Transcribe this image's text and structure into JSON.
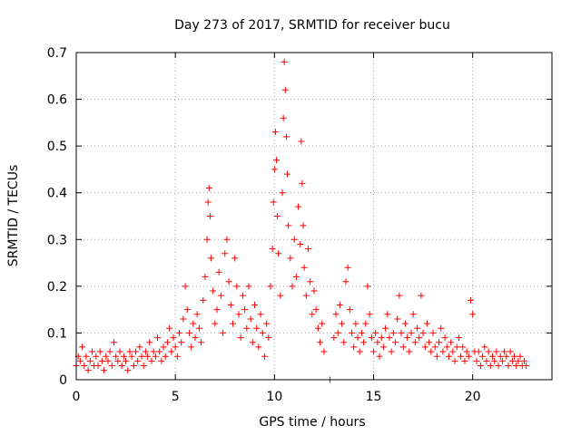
{
  "chart_data": {
    "type": "scatter",
    "title": "Day 273 of 2017, SRMTID for receiver bucu",
    "xlabel": "GPS time / hours",
    "ylabel": "SRMTID / TECUs",
    "xlim": [
      0,
      24
    ],
    "ylim": [
      0,
      0.7
    ],
    "xticks": [
      0,
      5,
      10,
      15,
      20
    ],
    "xtick_labels": [
      "0",
      "5",
      "10",
      "15",
      "20"
    ],
    "yticks": [
      0,
      0.1,
      0.2,
      0.3,
      0.4,
      0.5,
      0.6,
      0.7
    ],
    "ytick_labels": [
      "0",
      "0.1",
      "0.2",
      "0.3",
      "0.4",
      "0.5",
      "0.6",
      "0.7"
    ],
    "grid": true,
    "marker": "+",
    "color": "#ff0000",
    "series": [
      {
        "name": "SRMTID",
        "points": [
          [
            0.0,
            0.03
          ],
          [
            0.1,
            0.05
          ],
          [
            0.2,
            0.04
          ],
          [
            0.3,
            0.07
          ],
          [
            0.4,
            0.03
          ],
          [
            0.5,
            0.05
          ],
          [
            0.6,
            0.02
          ],
          [
            0.7,
            0.04
          ],
          [
            0.8,
            0.06
          ],
          [
            0.9,
            0.03
          ],
          [
            1.0,
            0.05
          ],
          [
            1.1,
            0.03
          ],
          [
            1.2,
            0.06
          ],
          [
            1.3,
            0.04
          ],
          [
            1.4,
            0.02
          ],
          [
            1.5,
            0.05
          ],
          [
            1.6,
            0.04
          ],
          [
            1.7,
            0.06
          ],
          [
            1.8,
            0.03
          ],
          [
            1.9,
            0.08
          ],
          [
            2.0,
            0.05
          ],
          [
            2.1,
            0.04
          ],
          [
            2.2,
            0.06
          ],
          [
            2.3,
            0.03
          ],
          [
            2.4,
            0.05
          ],
          [
            2.5,
            0.04
          ],
          [
            2.6,
            0.02
          ],
          [
            2.7,
            0.06
          ],
          [
            2.8,
            0.05
          ],
          [
            2.9,
            0.03
          ],
          [
            3.0,
            0.06
          ],
          [
            3.1,
            0.04
          ],
          [
            3.2,
            0.07
          ],
          [
            3.3,
            0.05
          ],
          [
            3.4,
            0.03
          ],
          [
            3.5,
            0.06
          ],
          [
            3.6,
            0.05
          ],
          [
            3.7,
            0.08
          ],
          [
            3.8,
            0.04
          ],
          [
            3.9,
            0.06
          ],
          [
            4.0,
            0.05
          ],
          [
            4.1,
            0.09
          ],
          [
            4.2,
            0.06
          ],
          [
            4.3,
            0.04
          ],
          [
            4.4,
            0.07
          ],
          [
            4.5,
            0.05
          ],
          [
            4.6,
            0.08
          ],
          [
            4.7,
            0.11
          ],
          [
            4.8,
            0.06
          ],
          [
            4.9,
            0.09
          ],
          [
            5.0,
            0.07
          ],
          [
            5.1,
            0.05
          ],
          [
            5.2,
            0.1
          ],
          [
            5.3,
            0.08
          ],
          [
            5.4,
            0.13
          ],
          [
            5.5,
            0.2
          ],
          [
            5.6,
            0.15
          ],
          [
            5.7,
            0.1
          ],
          [
            5.8,
            0.07
          ],
          [
            5.9,
            0.12
          ],
          [
            6.0,
            0.09
          ],
          [
            6.1,
            0.14
          ],
          [
            6.2,
            0.11
          ],
          [
            6.3,
            0.08
          ],
          [
            6.4,
            0.17
          ],
          [
            6.5,
            0.22
          ],
          [
            6.6,
            0.3
          ],
          [
            6.65,
            0.38
          ],
          [
            6.7,
            0.41
          ],
          [
            6.75,
            0.35
          ],
          [
            6.8,
            0.26
          ],
          [
            6.9,
            0.19
          ],
          [
            7.0,
            0.12
          ],
          [
            7.1,
            0.15
          ],
          [
            7.2,
            0.23
          ],
          [
            7.3,
            0.18
          ],
          [
            7.4,
            0.1
          ],
          [
            7.5,
            0.27
          ],
          [
            7.6,
            0.3
          ],
          [
            7.7,
            0.21
          ],
          [
            7.8,
            0.16
          ],
          [
            7.9,
            0.12
          ],
          [
            8.0,
            0.26
          ],
          [
            8.1,
            0.2
          ],
          [
            8.2,
            0.14
          ],
          [
            8.3,
            0.09
          ],
          [
            8.4,
            0.18
          ],
          [
            8.5,
            0.15
          ],
          [
            8.6,
            0.11
          ],
          [
            8.7,
            0.2
          ],
          [
            8.8,
            0.13
          ],
          [
            8.9,
            0.08
          ],
          [
            9.0,
            0.16
          ],
          [
            9.1,
            0.11
          ],
          [
            9.2,
            0.07
          ],
          [
            9.3,
            0.14
          ],
          [
            9.4,
            0.1
          ],
          [
            9.5,
            0.05
          ],
          [
            9.6,
            0.12
          ],
          [
            9.7,
            0.09
          ],
          [
            9.8,
            0.2
          ],
          [
            9.9,
            0.28
          ],
          [
            9.95,
            0.38
          ],
          [
            10.0,
            0.45
          ],
          [
            10.05,
            0.53
          ],
          [
            10.1,
            0.47
          ],
          [
            10.15,
            0.35
          ],
          [
            10.2,
            0.27
          ],
          [
            10.3,
            0.18
          ],
          [
            10.4,
            0.4
          ],
          [
            10.45,
            0.56
          ],
          [
            10.5,
            0.68
          ],
          [
            10.55,
            0.62
          ],
          [
            10.6,
            0.52
          ],
          [
            10.65,
            0.44
          ],
          [
            10.7,
            0.33
          ],
          [
            10.8,
            0.26
          ],
          [
            10.9,
            0.2
          ],
          [
            11.0,
            0.3
          ],
          [
            11.1,
            0.22
          ],
          [
            11.2,
            0.37
          ],
          [
            11.3,
            0.29
          ],
          [
            11.35,
            0.51
          ],
          [
            11.4,
            0.42
          ],
          [
            11.45,
            0.33
          ],
          [
            11.5,
            0.24
          ],
          [
            11.6,
            0.18
          ],
          [
            11.7,
            0.28
          ],
          [
            11.8,
            0.21
          ],
          [
            11.9,
            0.14
          ],
          [
            12.0,
            0.19
          ],
          [
            12.1,
            0.15
          ],
          [
            12.2,
            0.11
          ],
          [
            12.3,
            0.08
          ],
          [
            12.4,
            0.12
          ],
          [
            12.5,
            0.06
          ],
          [
            12.8,
            0.0
          ],
          [
            13.0,
            0.09
          ],
          [
            13.1,
            0.14
          ],
          [
            13.2,
            0.1
          ],
          [
            13.3,
            0.16
          ],
          [
            13.4,
            0.12
          ],
          [
            13.5,
            0.08
          ],
          [
            13.6,
            0.21
          ],
          [
            13.7,
            0.24
          ],
          [
            13.8,
            0.15
          ],
          [
            13.9,
            0.1
          ],
          [
            14.0,
            0.07
          ],
          [
            14.1,
            0.12
          ],
          [
            14.2,
            0.09
          ],
          [
            14.3,
            0.06
          ],
          [
            14.4,
            0.1
          ],
          [
            14.5,
            0.08
          ],
          [
            14.6,
            0.12
          ],
          [
            14.7,
            0.2
          ],
          [
            14.8,
            0.14
          ],
          [
            14.9,
            0.09
          ],
          [
            15.0,
            0.06
          ],
          [
            15.1,
            0.1
          ],
          [
            15.2,
            0.08
          ],
          [
            15.3,
            0.05
          ],
          [
            15.4,
            0.09
          ],
          [
            15.5,
            0.07
          ],
          [
            15.6,
            0.11
          ],
          [
            15.7,
            0.14
          ],
          [
            15.8,
            0.09
          ],
          [
            15.9,
            0.06
          ],
          [
            16.0,
            0.1
          ],
          [
            16.1,
            0.08
          ],
          [
            16.2,
            0.13
          ],
          [
            16.3,
            0.18
          ],
          [
            16.4,
            0.1
          ],
          [
            16.5,
            0.07
          ],
          [
            16.6,
            0.12
          ],
          [
            16.7,
            0.09
          ],
          [
            16.8,
            0.06
          ],
          [
            16.9,
            0.1
          ],
          [
            17.0,
            0.14
          ],
          [
            17.1,
            0.08
          ],
          [
            17.2,
            0.11
          ],
          [
            17.3,
            0.09
          ],
          [
            17.4,
            0.18
          ],
          [
            17.5,
            0.1
          ],
          [
            17.6,
            0.07
          ],
          [
            17.7,
            0.12
          ],
          [
            17.8,
            0.08
          ],
          [
            17.9,
            0.06
          ],
          [
            18.0,
            0.1
          ],
          [
            18.1,
            0.07
          ],
          [
            18.2,
            0.05
          ],
          [
            18.3,
            0.08
          ],
          [
            18.4,
            0.11
          ],
          [
            18.5,
            0.06
          ],
          [
            18.6,
            0.09
          ],
          [
            18.7,
            0.07
          ],
          [
            18.8,
            0.05
          ],
          [
            18.9,
            0.08
          ],
          [
            19.0,
            0.06
          ],
          [
            19.1,
            0.04
          ],
          [
            19.2,
            0.07
          ],
          [
            19.3,
            0.09
          ],
          [
            19.4,
            0.05
          ],
          [
            19.5,
            0.07
          ],
          [
            19.6,
            0.04
          ],
          [
            19.7,
            0.06
          ],
          [
            19.8,
            0.05
          ],
          [
            19.9,
            0.17
          ],
          [
            20.0,
            0.14
          ],
          [
            20.1,
            0.06
          ],
          [
            20.2,
            0.04
          ],
          [
            20.3,
            0.06
          ],
          [
            20.4,
            0.03
          ],
          [
            20.5,
            0.05
          ],
          [
            20.6,
            0.07
          ],
          [
            20.7,
            0.04
          ],
          [
            20.8,
            0.06
          ],
          [
            20.9,
            0.03
          ],
          [
            21.0,
            0.05
          ],
          [
            21.1,
            0.04
          ],
          [
            21.2,
            0.06
          ],
          [
            21.3,
            0.03
          ],
          [
            21.4,
            0.05
          ],
          [
            21.5,
            0.04
          ],
          [
            21.6,
            0.06
          ],
          [
            21.7,
            0.05
          ],
          [
            21.8,
            0.03
          ],
          [
            21.9,
            0.06
          ],
          [
            22.0,
            0.04
          ],
          [
            22.1,
            0.05
          ],
          [
            22.2,
            0.03
          ],
          [
            22.3,
            0.04
          ],
          [
            22.4,
            0.05
          ],
          [
            22.5,
            0.03
          ],
          [
            22.6,
            0.04
          ],
          [
            22.7,
            0.03
          ]
        ]
      }
    ]
  }
}
